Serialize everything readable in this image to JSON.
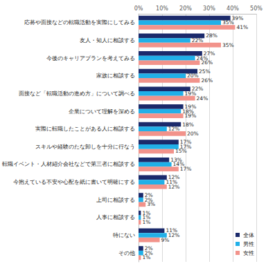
{
  "chart_data": {
    "type": "bar",
    "orientation": "horizontal",
    "categories": [
      "応募や面接などの転職活動を実際にしてみる",
      "友人・知人に相談する",
      "今後のキャリアプランを考えてみる",
      "家族に相談する",
      "面接など「転職活動の進め方」について調べる",
      "企業について理解を深める",
      "実際に転職したことがある人に相談する",
      "スキルや経験のたな卸しを十分に行なう",
      "転職イベント・人材紹介会社などで第三者に相談する",
      "今抱えている不安や心配を紙に書いて明確にする",
      "上司に相談する",
      "人事に相談する",
      "特にない",
      "その他"
    ],
    "series": [
      {
        "name": "全体",
        "color": "#1b2a6b",
        "values": [
          39,
          28,
          27,
          25,
          22,
          19,
          18,
          17,
          13,
          12,
          2,
          1,
          11,
          2
        ],
        "value_labels": [
          "39%",
          "28%",
          "27%",
          "25%",
          "22%",
          "19%",
          "18%",
          "17%",
          "13%",
          "12%",
          "2%",
          "1%",
          "11%",
          "2%"
        ]
      },
      {
        "name": "男性",
        "color": "#21b0e8",
        "values": [
          35,
          22,
          24,
          20,
          19,
          18,
          12,
          17,
          14,
          11,
          2,
          1,
          12,
          2
        ],
        "value_labels": [
          "35%",
          "22%",
          "24%",
          "20%",
          "19%",
          "18%",
          "12%",
          "17%",
          "14%",
          "11%",
          "2%",
          "1%",
          "12%",
          "2%"
        ]
      },
      {
        "name": "女性",
        "color": "#f2938b",
        "values": [
          41,
          35,
          26,
          26,
          24,
          19,
          20,
          15,
          17,
          12,
          3,
          1,
          9,
          1
        ],
        "value_labels": [
          "41%",
          "35%",
          "26%",
          "26%",
          "24%",
          "19%",
          "20%",
          "15%",
          "17%",
          "12%",
          "3%",
          "1%",
          "9%",
          "1%"
        ]
      }
    ],
    "xlim": [
      0,
      50
    ],
    "xticks": [
      {
        "value": 0,
        "label": "0%"
      },
      {
        "value": 10,
        "label": "10%"
      },
      {
        "value": 20,
        "label": "20%"
      },
      {
        "value": 30,
        "label": "30%"
      },
      {
        "value": 40,
        "label": "40%"
      },
      {
        "value": 50,
        "label": "50%"
      }
    ],
    "grid": true,
    "legend": "bottom-right",
    "data_labels": true
  }
}
